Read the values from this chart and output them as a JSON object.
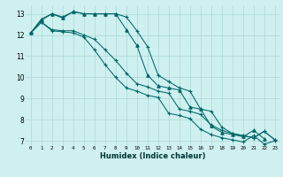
{
  "xlabel": "Humidex (Indice chaleur)",
  "bg_color": "#cff0f0",
  "grid_color": "#aad8d8",
  "line_color": "#006666",
  "xlim": [
    -0.5,
    23.5
  ],
  "ylim": [
    6.8,
    13.4
  ],
  "yticks": [
    7,
    8,
    9,
    10,
    11,
    12,
    13
  ],
  "xticks": [
    0,
    1,
    2,
    3,
    4,
    5,
    6,
    7,
    8,
    9,
    10,
    11,
    12,
    13,
    14,
    15,
    16,
    17,
    18,
    19,
    20,
    21,
    22,
    23
  ],
  "series": [
    {
      "x": [
        0,
        1,
        2,
        3,
        4,
        5,
        6,
        7,
        8,
        9,
        10,
        11,
        12,
        13,
        14,
        15,
        16,
        17,
        18,
        19,
        20,
        21,
        22
      ],
      "y": [
        12.1,
        12.75,
        13.0,
        12.8,
        13.1,
        13.0,
        13.0,
        13.0,
        13.0,
        12.25,
        11.5,
        10.1,
        9.6,
        9.5,
        9.4,
        8.6,
        8.5,
        7.7,
        7.4,
        7.3,
        7.2,
        7.5,
        7.1
      ],
      "marker": "^",
      "ms": 2.5
    },
    {
      "x": [
        0,
        1,
        2,
        3,
        4,
        5,
        6,
        7,
        8,
        9,
        10,
        11,
        12,
        13,
        14,
        15,
        16,
        17,
        18,
        19,
        20,
        21,
        22,
        23
      ],
      "y": [
        12.1,
        12.7,
        13.0,
        12.85,
        13.1,
        13.0,
        13.0,
        13.0,
        13.0,
        12.85,
        12.2,
        11.45,
        10.1,
        9.8,
        9.5,
        9.35,
        8.5,
        8.4,
        7.65,
        7.35,
        7.25,
        7.15,
        7.45,
        7.05
      ],
      "marker": "+",
      "ms": 3.5
    },
    {
      "x": [
        0,
        1,
        2,
        3,
        4,
        5,
        6,
        7,
        8,
        9,
        10,
        11,
        12,
        13,
        14,
        15,
        16,
        17,
        18,
        19,
        20,
        21,
        22,
        23
      ],
      "y": [
        12.1,
        12.6,
        12.25,
        12.2,
        12.2,
        12.0,
        11.8,
        11.3,
        10.8,
        10.2,
        9.7,
        9.55,
        9.35,
        9.25,
        8.5,
        8.4,
        8.25,
        7.75,
        7.5,
        7.35,
        7.25,
        7.15,
        7.45,
        7.05
      ],
      "marker": "+",
      "ms": 3.5
    },
    {
      "x": [
        0,
        1,
        2,
        3,
        4,
        5,
        6,
        7,
        8,
        9,
        10,
        11,
        12,
        13,
        14,
        15,
        16,
        17,
        18,
        19,
        20,
        21,
        22,
        23
      ],
      "y": [
        12.1,
        12.6,
        12.2,
        12.15,
        12.1,
        11.9,
        11.3,
        10.6,
        10.0,
        9.5,
        9.35,
        9.15,
        9.05,
        8.3,
        8.2,
        8.05,
        7.55,
        7.3,
        7.15,
        7.05,
        6.95,
        7.25,
        6.85,
        7.0
      ],
      "marker": "+",
      "ms": 3.5
    }
  ]
}
